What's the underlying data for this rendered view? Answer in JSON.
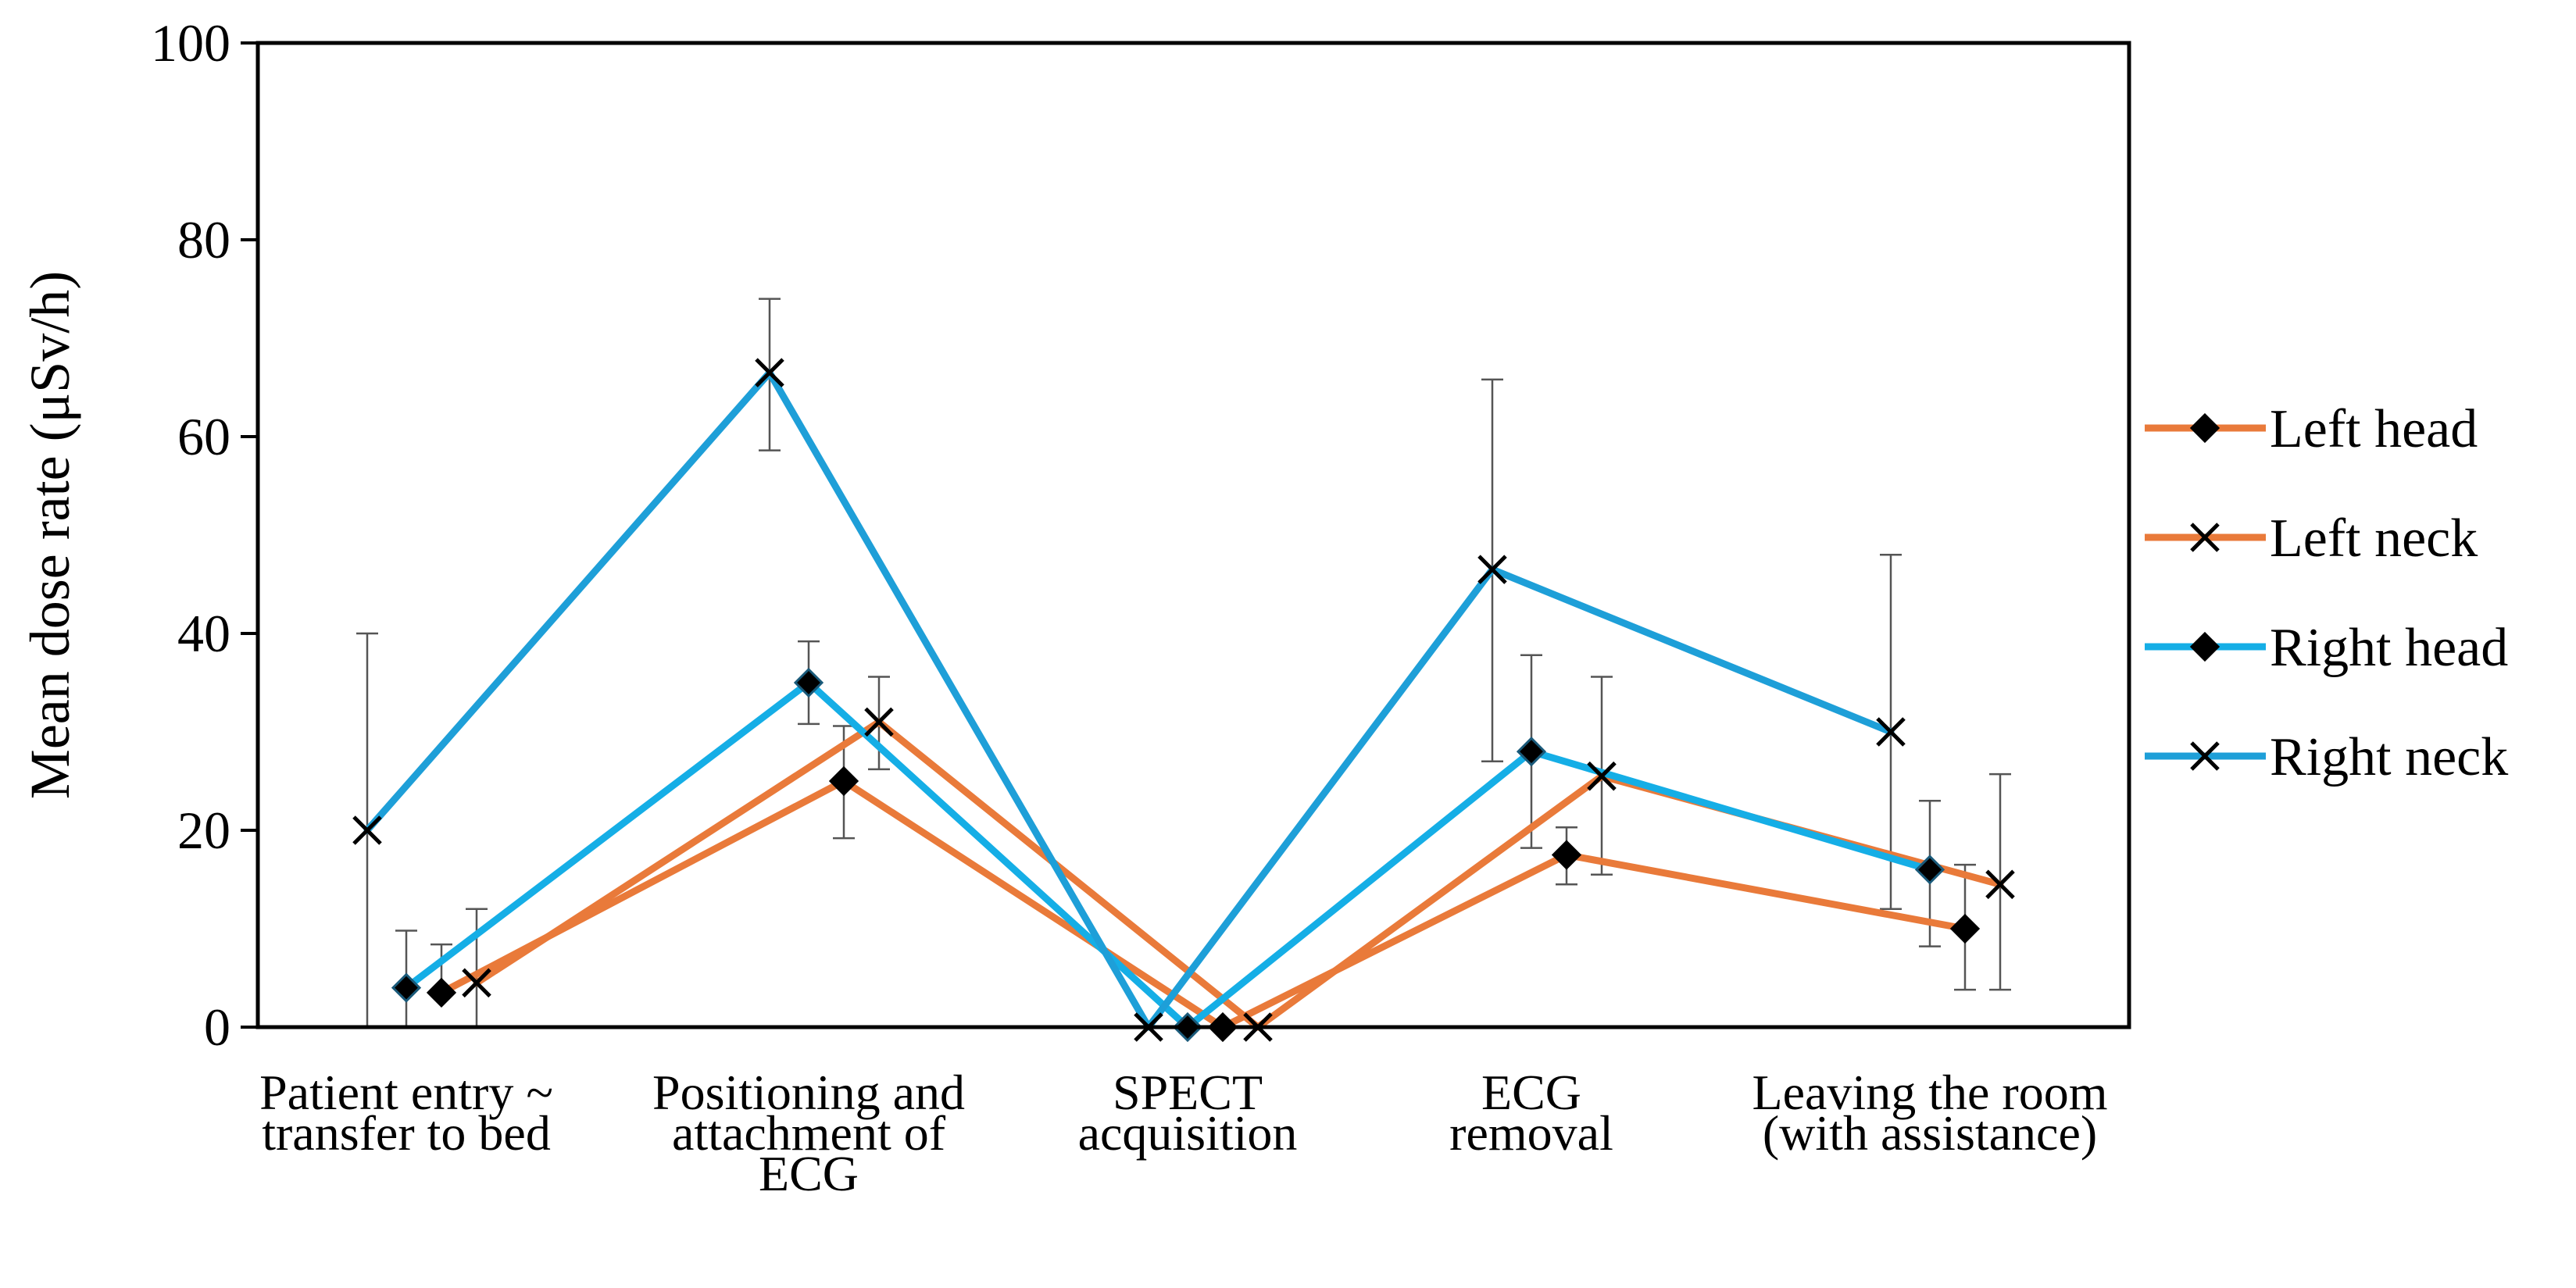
{
  "chart_data": {
    "type": "line",
    "title": "",
    "xlabel": "",
    "ylabel": "Mean dose rate (μSv/h)",
    "ylim": [
      0,
      100
    ],
    "yticks": [
      0,
      20,
      40,
      60,
      80,
      100
    ],
    "grid": false,
    "legend_position": "right",
    "categories": [
      [
        "Patient entry ~",
        "transfer to bed"
      ],
      [
        "Positioning and",
        "attachment of",
        "ECG"
      ],
      [
        "SPECT",
        "acquisition"
      ],
      [
        "ECG",
        "removal"
      ],
      [
        "Leaving the room",
        "(with assistance)"
      ]
    ],
    "series": [
      {
        "name": "Left head",
        "color": "#E97A3A",
        "marker": "diamond",
        "values": [
          3.5,
          25,
          0,
          17.5,
          10
        ],
        "error_low": [
          3.5,
          19.2,
          0,
          14.5,
          3.8
        ],
        "error_high": [
          8.4,
          30.6,
          0,
          20.3,
          16.5
        ]
      },
      {
        "name": "Left neck",
        "color": "#E97A3A",
        "marker": "x",
        "values": [
          4.5,
          31,
          0,
          25.5,
          14.5
        ],
        "error_low": [
          0,
          26.2,
          0,
          15.5,
          3.8
        ],
        "error_high": [
          12,
          35.6,
          0,
          35.6,
          25.7
        ]
      },
      {
        "name": "Right head",
        "color": "#15AEE6",
        "marker": "diamond",
        "values": [
          4,
          35,
          0,
          28,
          16
        ],
        "error_low": [
          0,
          30.8,
          0,
          18.2,
          8.2
        ],
        "error_high": [
          9.8,
          39.2,
          0,
          37.8,
          23
        ]
      },
      {
        "name": "Right neck",
        "color": "#1E9FD8",
        "marker": "x",
        "values": [
          20,
          66.5,
          0,
          46.5,
          30
        ],
        "error_low": [
          0,
          58.6,
          0,
          27,
          12
        ],
        "error_high": [
          40,
          74,
          0,
          65.8,
          48
        ]
      }
    ]
  }
}
